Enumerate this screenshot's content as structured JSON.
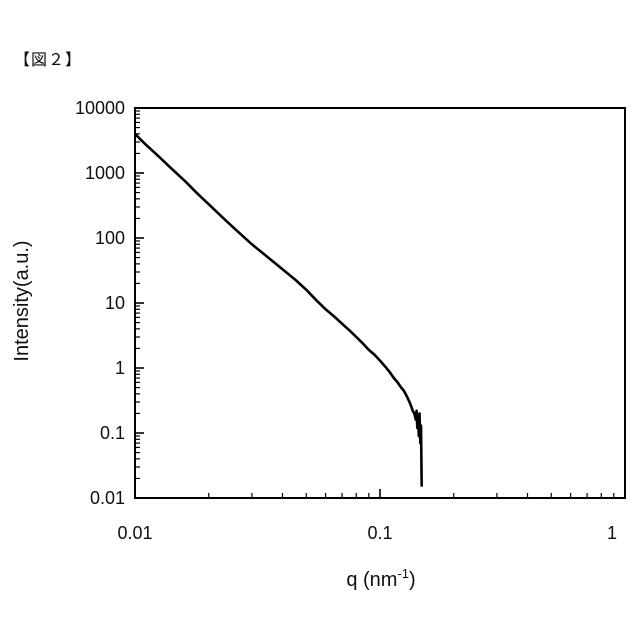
{
  "figure_label": "【図２】",
  "chart_data": {
    "type": "line",
    "title": "",
    "xlabel": "q (nm-1)",
    "xlabel_main": "q (nm",
    "xlabel_sup": "-1",
    "xlabel_close": ")",
    "ylabel": "Intensity(a.u.)",
    "x_scale": "log",
    "y_scale": "log",
    "xlim": [
      0.01,
      1
    ],
    "ylim": [
      0.01,
      10000
    ],
    "x_ticks": [
      0.01,
      0.1,
      1
    ],
    "x_tick_labels": [
      "0.01",
      "0.1",
      "1"
    ],
    "y_ticks": [
      0.01,
      0.1,
      1,
      10,
      100,
      1000,
      10000
    ],
    "y_tick_labels": [
      "0.01",
      "0.1",
      "1",
      "10",
      "100",
      "1000",
      "10000"
    ],
    "grid": false,
    "legend": "none",
    "line_color": "#000000",
    "series": [
      {
        "x": [
          0.01,
          0.011,
          0.0125,
          0.014,
          0.016,
          0.018,
          0.02,
          0.023,
          0.026,
          0.03,
          0.035,
          0.04,
          0.045,
          0.05,
          0.055,
          0.06,
          0.065,
          0.07,
          0.075,
          0.08,
          0.085,
          0.09,
          0.095,
          0.1,
          0.105,
          0.11,
          0.114,
          0.118,
          0.122,
          0.125,
          0.128,
          0.13,
          0.132,
          0.134,
          0.136,
          0.138,
          0.14,
          0.141,
          0.142,
          0.143,
          0.144,
          0.145,
          0.146,
          0.147,
          0.148
        ],
        "y": [
          4000,
          2800,
          1800,
          1200,
          750,
          480,
          330,
          200,
          130,
          80,
          50,
          33,
          23,
          16,
          11,
          8.0,
          6.2,
          4.8,
          3.8,
          3.0,
          2.4,
          1.9,
          1.6,
          1.3,
          1.05,
          0.85,
          0.7,
          0.6,
          0.5,
          0.45,
          0.38,
          0.34,
          0.3,
          0.26,
          0.22,
          0.2,
          0.16,
          0.22,
          0.12,
          0.18,
          0.09,
          0.2,
          0.07,
          0.13,
          0.015
        ]
      }
    ]
  }
}
